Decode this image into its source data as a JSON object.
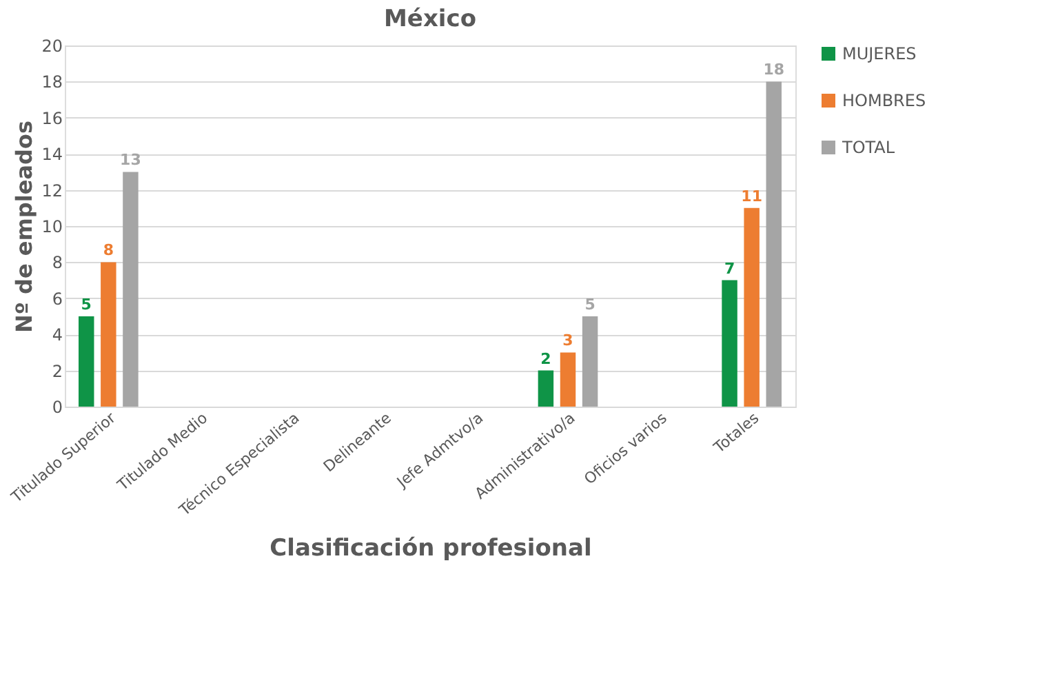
{
  "chart_data": {
    "type": "bar",
    "title": "México",
    "xlabel": "Clasificación profesional",
    "ylabel": "Nº de empleados",
    "categories": [
      "Titulado Superior",
      "Titulado Medio",
      "Técnico Especialista",
      "Delineante",
      "Jefe Admtvo/a",
      "Administrativo/a",
      "Oficios varios",
      "Totales"
    ],
    "series": [
      {
        "name": "MUJERES",
        "color": "#0f9447",
        "values": [
          5,
          null,
          null,
          null,
          null,
          2,
          null,
          7
        ]
      },
      {
        "name": "HOMBRES",
        "color": "#ed7d31",
        "values": [
          8,
          null,
          null,
          null,
          null,
          3,
          null,
          11
        ]
      },
      {
        "name": "TOTAL",
        "color": "#a5a5a5",
        "values": [
          13,
          null,
          null,
          null,
          null,
          5,
          null,
          18
        ]
      }
    ],
    "ylim": [
      0,
      20
    ],
    "yticks": [
      0,
      2,
      4,
      6,
      8,
      10,
      12,
      14,
      16,
      18,
      20
    ],
    "grid": "y",
    "legend": "right",
    "data_labels": true
  }
}
